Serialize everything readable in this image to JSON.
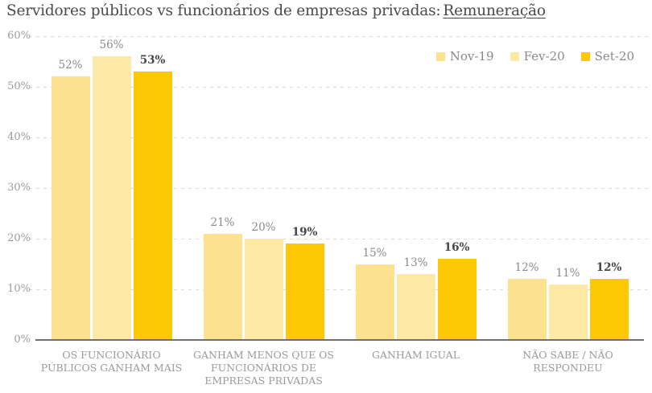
{
  "title": {
    "main": "Servidores públicos vs funcionários de empresas privadas:",
    "underlined": "Remuneração"
  },
  "chart_data": {
    "type": "bar",
    "title": "Servidores públicos vs funcionários de empresas privadas: Remuneração",
    "categories": [
      "OS FUNCIONÁRIO PÚBLICOS GANHAM MAIS",
      "GANHAM MENOS QUE OS FUNCIONÁRIOS DE EMPRESAS PRIVADAS",
      "GANHAM IGUAL",
      "NÃO SABE / NÃO RESPONDEU"
    ],
    "series": [
      {
        "name": "Nov-19",
        "color": "#FCE18E",
        "values": [
          52,
          21,
          15,
          12
        ],
        "emphasis": false
      },
      {
        "name": "Fev-20",
        "color": "#FDE9A5",
        "values": [
          56,
          20,
          13,
          11
        ],
        "emphasis": false
      },
      {
        "name": "Set-20",
        "color": "#FFC805",
        "values": [
          53,
          19,
          16,
          12
        ],
        "emphasis": true
      }
    ],
    "value_label_suffix": "%",
    "xlabel": "",
    "ylabel": "",
    "ylim": [
      0,
      60
    ],
    "ytick_step": 10,
    "ytick_suffix": "%",
    "grid": "horizontal-dashed",
    "legend_position": "top-right"
  },
  "colors": {
    "title": "#4A4A4A",
    "axis": "#6F6F6F",
    "gridline": "#DBDBDB",
    "tick_label": "#9C9C9C",
    "category_label": "#9A9A9A",
    "value_label": "#8A8A8A",
    "value_label_emphasis": "#474747",
    "legend_label": "#8A8A8A"
  }
}
